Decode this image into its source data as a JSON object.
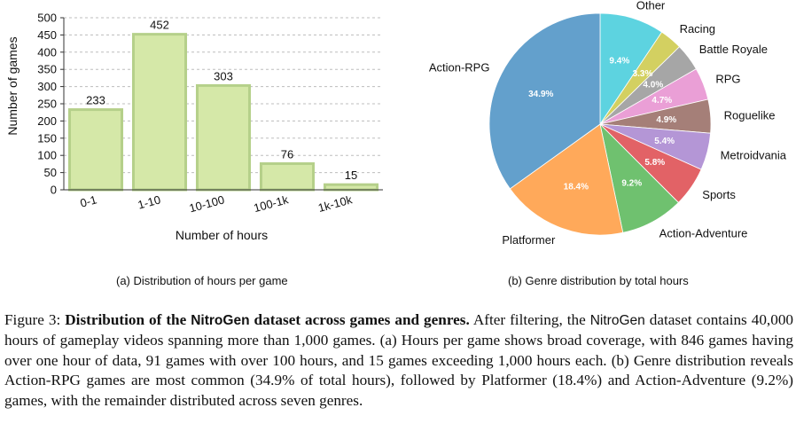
{
  "chart_data": [
    {
      "type": "bar",
      "title": "",
      "categories": [
        "0-1",
        "1-10",
        "10-100",
        "100-1k",
        "1k-10k"
      ],
      "values": [
        233,
        452,
        303,
        76,
        15
      ],
      "xlabel": "Number of hours",
      "ylabel": "Number of games",
      "ylim": [
        0,
        500
      ],
      "yticks": [
        0,
        50,
        100,
        150,
        200,
        250,
        300,
        350,
        400,
        450,
        500
      ],
      "grid": true,
      "bar_color": "#d5e8a8",
      "bar_edge_color": "#b5d08a",
      "subcaption": "(a) Distribution of hours per game"
    },
    {
      "type": "pie",
      "title": "",
      "slices": [
        {
          "label": "Other",
          "value": 9.4,
          "pct_label": "9.4%",
          "color": "#5dd3e0"
        },
        {
          "label": "Racing",
          "value": 3.3,
          "pct_label": "3.3%",
          "color": "#d3d061"
        },
        {
          "label": "Battle Royale",
          "value": 4.0,
          "pct_label": "4.0%",
          "color": "#a6a6a6"
        },
        {
          "label": "RPG",
          "value": 4.7,
          "pct_label": "4.7%",
          "color": "#ea9fd6"
        },
        {
          "label": "Roguelike",
          "value": 4.9,
          "pct_label": "4.9%",
          "color": "#a57f78"
        },
        {
          "label": "Metroidvania",
          "value": 5.4,
          "pct_label": "5.4%",
          "color": "#b496d6"
        },
        {
          "label": "Sports",
          "value": 5.8,
          "pct_label": "5.8%",
          "color": "#e26266"
        },
        {
          "label": "Action-Adventure",
          "value": 9.2,
          "pct_label": "9.2%",
          "color": "#6fc16f"
        },
        {
          "label": "Platformer",
          "value": 18.4,
          "pct_label": "18.4%",
          "color": "#ffa95a"
        },
        {
          "label": "Action-RPG",
          "value": 34.9,
          "pct_label": "34.9%",
          "color": "#63a0cc"
        }
      ],
      "start_angle_deg": 90,
      "direction": "clockwise",
      "subcaption": "(b) Genre distribution by total hours"
    }
  ],
  "caption": {
    "figure_label": "Figure 3:",
    "lead_1": "Distribution of the ",
    "lead_name": "NitroGen",
    "lead_2": " dataset across games and genres.",
    "body_1": " After filtering, the ",
    "body_name": "NitroGen",
    "body_2": " dataset contains 40,000 hours of gameplay videos spanning more than 1,000 games. (a) Hours per game shows broad coverage, with 846 games having over one hour of data, 91 games with over 100 hours, and 15 games exceeding 1,000 hours each. (b) Genre distribution reveals Action-RPG games are most common (34.9% of total hours), followed by Platformer (18.4%) and Action-Adventure (9.2%) games, with the remainder distributed across seven genres."
  }
}
